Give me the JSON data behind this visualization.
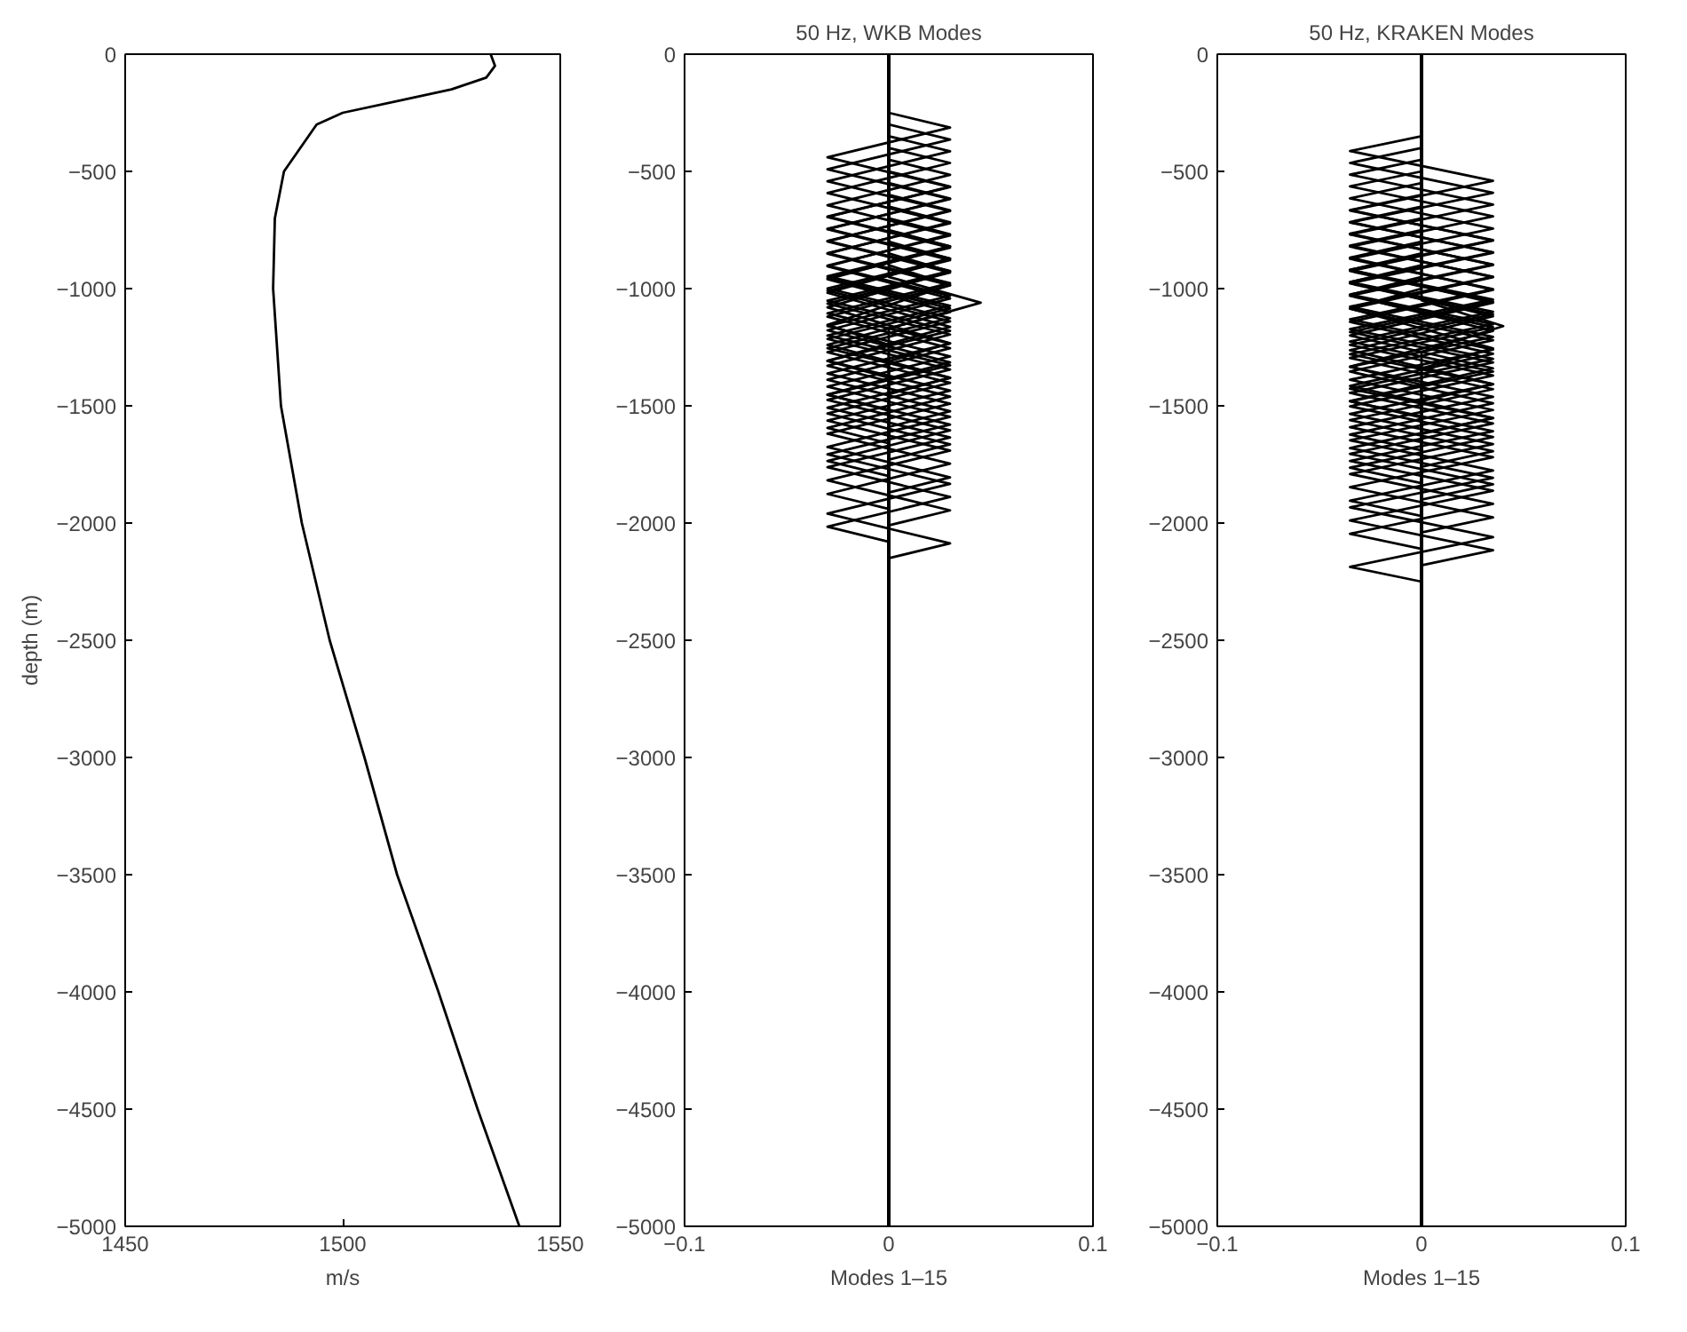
{
  "chart_data": [
    {
      "type": "line",
      "xlabel": "m/s",
      "ylabel": "depth (m)",
      "xlim": [
        1450,
        1550
      ],
      "ylim": [
        -5000,
        0
      ],
      "xticks": [
        1450,
        1500,
        1550
      ],
      "yticks": [
        -5000,
        -4500,
        -4000,
        -3500,
        -3000,
        -2500,
        -2000,
        -1500,
        -1000,
        -500,
        0
      ],
      "grid": false,
      "marker": "none",
      "line_style": "solid",
      "series": [
        {
          "color": "#000000",
          "x": [
            1534,
            1535,
            1533,
            1525,
            1512.5,
            1500,
            1494,
            1486.5,
            1484.4,
            1484,
            1485.8,
            1490.6,
            1497,
            1505,
            1512.5,
            1522,
            1531,
            1540.6
          ],
          "values": [
            0,
            -50,
            -100,
            -150,
            -200,
            -250,
            -300,
            -500,
            -700,
            -1000,
            -1500,
            -2000,
            -2500,
            -3000,
            -3500,
            -4000,
            -4500,
            -5000
          ]
        }
      ]
    },
    {
      "type": "line",
      "title": "50 Hz, WKB Modes",
      "xlabel": "Modes 1–15",
      "xlim": [
        -0.1,
        0.1
      ],
      "ylim": [
        -5000,
        0
      ],
      "xticks": [
        -0.1,
        0,
        0.1
      ],
      "yticks": [
        -5000,
        -4500,
        -4000,
        -3500,
        -3000,
        -2500,
        -2000,
        -1500,
        -1000,
        -500,
        0
      ],
      "grid": false,
      "marker": "none",
      "line_style": "solid",
      "series": [
        {
          "color": "#000000",
          "x": [
            0,
            0,
            0.045,
            0,
            0
          ],
          "values": [
            0,
            -950,
            -1060,
            -1170,
            -5000
          ]
        },
        {
          "color": "#000000",
          "x": [
            0,
            0,
            0.03,
            -0.03,
            0,
            0
          ],
          "values": [
            0,
            -900,
            -985,
            -1155,
            -1240,
            -5000
          ]
        },
        {
          "color": "#000000",
          "x": [
            0,
            0,
            0.03,
            -0.03,
            0.03,
            0,
            0
          ],
          "values": [
            0,
            -850,
            -927,
            -1080,
            -1233,
            -1310,
            -5000
          ]
        },
        {
          "color": "#000000",
          "x": [
            0,
            0,
            0.03,
            -0.03,
            0.03,
            -0.03,
            0,
            0
          ],
          "values": [
            0,
            -800,
            -873,
            -1018,
            -1163,
            -1308,
            -1380,
            -5000
          ]
        },
        {
          "color": "#000000",
          "x": [
            0,
            0,
            0.03,
            -0.03,
            0.03,
            -0.03,
            0.03,
            0,
            0
          ],
          "values": [
            0,
            -750,
            -820,
            -960,
            -1100,
            -1240,
            -1380,
            -1450,
            -5000
          ]
        },
        {
          "color": "#000000",
          "x": [
            0,
            0,
            0.03,
            -0.03,
            0.03,
            -0.03,
            0.03,
            -0.03,
            0,
            0
          ],
          "values": [
            0,
            -700,
            -768,
            -905,
            -1042,
            -1178,
            -1315,
            -1452,
            -1520,
            -5000
          ]
        },
        {
          "color": "#000000",
          "x": [
            0,
            0,
            0.03,
            -0.03,
            0.03,
            -0.03,
            0.03,
            -0.03,
            0.03,
            0,
            0
          ],
          "values": [
            0,
            -650,
            -717,
            -851,
            -986,
            -1120,
            -1254,
            -1389,
            -1523,
            -1590,
            -5000
          ]
        },
        {
          "color": "#000000",
          "x": [
            0,
            0,
            0.03,
            -0.03,
            0.03,
            -0.03,
            0.03,
            -0.03,
            0.03,
            -0.03,
            0,
            0
          ],
          "values": [
            0,
            -600,
            -666,
            -799,
            -931,
            -1064,
            -1196,
            -1329,
            -1461,
            -1594,
            -1660,
            -5000
          ]
        },
        {
          "color": "#000000",
          "x": [
            0,
            0,
            0.03,
            -0.03,
            0.03,
            -0.03,
            0.03,
            -0.03,
            0.03,
            -0.03,
            0.03,
            0,
            0
          ],
          "values": [
            0,
            -550,
            -616,
            -747,
            -878,
            -1009,
            -1140,
            -1271,
            -1402,
            -1533,
            -1664,
            -1730,
            -5000
          ]
        },
        {
          "color": "#000000",
          "x": [
            0,
            0,
            0.03,
            -0.03,
            0.03,
            -0.03,
            0.03,
            -0.03,
            0.03,
            -0.03,
            0.03,
            -0.03,
            0,
            0
          ],
          "values": [
            0,
            -500,
            -565,
            -695,
            -825,
            -955,
            -1085,
            -1215,
            -1345,
            -1475,
            -1605,
            -1735,
            -1800,
            -5000
          ]
        },
        {
          "color": "#000000",
          "x": [
            0,
            0,
            0.03,
            -0.03,
            0.03,
            -0.03,
            0.03,
            -0.03,
            0.03,
            -0.03,
            0.03,
            -0.03,
            0.03,
            0,
            0
          ],
          "values": [
            0,
            -450,
            -515,
            -644,
            -773,
            -902,
            -1031,
            -1160,
            -1289,
            -1418,
            -1547,
            -1676,
            -1805,
            -1870,
            -5000
          ]
        },
        {
          "color": "#000000",
          "x": [
            0,
            0,
            0.03,
            -0.03,
            0.03,
            -0.03,
            0.03,
            -0.03,
            0.03,
            -0.03,
            0.03,
            -0.03,
            0.03,
            -0.03,
            0,
            0
          ],
          "values": [
            0,
            -400,
            -464,
            -592,
            -721,
            -849,
            -977,
            -1106,
            -1234,
            -1362,
            -1491,
            -1619,
            -1747,
            -1876,
            -1940,
            -5000
          ]
        },
        {
          "color": "#000000",
          "x": [
            0,
            0,
            0.03,
            -0.03,
            0.03,
            -0.03,
            0.03,
            -0.03,
            0.03,
            -0.03,
            0.03,
            -0.03,
            0.03,
            -0.03,
            0.03,
            0,
            0
          ],
          "values": [
            0,
            -350,
            -414,
            -542,
            -669,
            -797,
            -925,
            -1052,
            -1180,
            -1308,
            -1435,
            -1563,
            -1691,
            -1818,
            -1946,
            -2010,
            -5000
          ]
        },
        {
          "color": "#000000",
          "x": [
            0,
            0,
            0.03,
            -0.03,
            0.03,
            -0.03,
            0.03,
            -0.03,
            0.03,
            -0.03,
            0.03,
            -0.03,
            0.03,
            -0.03,
            0.03,
            -0.03,
            0,
            0
          ],
          "values": [
            0,
            -300,
            -364,
            -491,
            -618,
            -745,
            -872,
            -999,
            -1126,
            -1254,
            -1381,
            -1508,
            -1635,
            -1762,
            -1889,
            -2016,
            -2080,
            -5000
          ]
        },
        {
          "color": "#000000",
          "x": [
            0,
            0,
            0.03,
            -0.03,
            0.03,
            -0.03,
            0.03,
            -0.03,
            0.03,
            -0.03,
            0.03,
            -0.03,
            0.03,
            -0.03,
            0.03,
            -0.03,
            0.03,
            0,
            0
          ],
          "values": [
            0,
            -250,
            -313,
            -440,
            -567,
            -693,
            -820,
            -947,
            -1073,
            -1200,
            -1327,
            -1453,
            -1580,
            -1707,
            -1833,
            -1960,
            -2087,
            -2150,
            -5000
          ]
        }
      ]
    },
    {
      "type": "line",
      "title": "50 Hz, KRAKEN Modes",
      "xlabel": "Modes 1–15",
      "xlim": [
        -0.1,
        0.1
      ],
      "ylim": [
        -5000,
        0
      ],
      "xticks": [
        -0.1,
        0,
        0.1
      ],
      "yticks": [
        -5000,
        -4500,
        -4000,
        -3500,
        -3000,
        -2500,
        -2000,
        -1500,
        -1000,
        -500,
        0
      ],
      "grid": false,
      "marker": "none",
      "line_style": "solid",
      "series": [
        {
          "color": "#000000",
          "x": [
            0,
            0,
            0.04,
            0,
            0
          ],
          "values": [
            0,
            -1050,
            -1160,
            -1270,
            -5000
          ]
        },
        {
          "color": "#000000",
          "x": [
            0,
            0,
            -0.035,
            0.035,
            0,
            0
          ],
          "values": [
            0,
            -1000,
            -1085,
            -1255,
            -1340,
            -5000
          ]
        },
        {
          "color": "#000000",
          "x": [
            0,
            0,
            -0.035,
            0.035,
            -0.035,
            0,
            0
          ],
          "values": [
            0,
            -950,
            -1027,
            -1180,
            -1333,
            -1410,
            -5000
          ]
        },
        {
          "color": "#000000",
          "x": [
            0,
            0,
            -0.035,
            0.035,
            -0.035,
            0.035,
            0,
            0
          ],
          "values": [
            0,
            -900,
            -973,
            -1118,
            -1263,
            -1408,
            -1480,
            -5000
          ]
        },
        {
          "color": "#000000",
          "x": [
            0,
            0,
            -0.035,
            0.035,
            -0.035,
            0.035,
            -0.035,
            0,
            0
          ],
          "values": [
            0,
            -850,
            -920,
            -1060,
            -1200,
            -1340,
            -1480,
            -1550,
            -5000
          ]
        },
        {
          "color": "#000000",
          "x": [
            0,
            0,
            -0.035,
            0.035,
            -0.035,
            0.035,
            -0.035,
            0.035,
            0,
            0
          ],
          "values": [
            0,
            -800,
            -868,
            -1005,
            -1142,
            -1278,
            -1415,
            -1552,
            -1620,
            -5000
          ]
        },
        {
          "color": "#000000",
          "x": [
            0,
            0,
            -0.035,
            0.035,
            -0.035,
            0.035,
            -0.035,
            0.035,
            -0.035,
            0,
            0
          ],
          "values": [
            0,
            -750,
            -817,
            -951,
            -1086,
            -1220,
            -1354,
            -1489,
            -1623,
            -1690,
            -5000
          ]
        },
        {
          "color": "#000000",
          "x": [
            0,
            0,
            -0.035,
            0.035,
            -0.035,
            0.035,
            -0.035,
            0.035,
            -0.035,
            0.035,
            0,
            0
          ],
          "values": [
            0,
            -700,
            -766,
            -899,
            -1031,
            -1164,
            -1296,
            -1429,
            -1561,
            -1694,
            -1760,
            -5000
          ]
        },
        {
          "color": "#000000",
          "x": [
            0,
            0,
            -0.035,
            0.035,
            -0.035,
            0.035,
            -0.035,
            0.035,
            -0.035,
            0.035,
            -0.035,
            0,
            0
          ],
          "values": [
            0,
            -650,
            -716,
            -847,
            -978,
            -1109,
            -1240,
            -1371,
            -1502,
            -1633,
            -1764,
            -1830,
            -5000
          ]
        },
        {
          "color": "#000000",
          "x": [
            0,
            0,
            -0.035,
            0.035,
            -0.035,
            0.035,
            -0.035,
            0.035,
            -0.035,
            0.035,
            -0.035,
            0.035,
            0,
            0
          ],
          "values": [
            0,
            -600,
            -665,
            -795,
            -925,
            -1055,
            -1185,
            -1315,
            -1445,
            -1575,
            -1705,
            -1835,
            -1900,
            -5000
          ]
        },
        {
          "color": "#000000",
          "x": [
            0,
            0,
            -0.035,
            0.035,
            -0.035,
            0.035,
            -0.035,
            0.035,
            -0.035,
            0.035,
            -0.035,
            0.035,
            -0.035,
            0,
            0
          ],
          "values": [
            0,
            -550,
            -615,
            -744,
            -873,
            -1002,
            -1131,
            -1260,
            -1389,
            -1518,
            -1647,
            -1776,
            -1905,
            -1970,
            -5000
          ]
        },
        {
          "color": "#000000",
          "x": [
            0,
            0,
            -0.035,
            0.035,
            -0.035,
            0.035,
            -0.035,
            0.035,
            -0.035,
            0.035,
            -0.035,
            0.035,
            -0.035,
            0.035,
            0,
            0
          ],
          "values": [
            0,
            -500,
            -564,
            -692,
            -821,
            -949,
            -1077,
            -1206,
            -1334,
            -1462,
            -1591,
            -1719,
            -1847,
            -1976,
            -2040,
            -5000
          ]
        },
        {
          "color": "#000000",
          "x": [
            0,
            0,
            -0.035,
            0.035,
            -0.035,
            0.035,
            -0.035,
            0.035,
            -0.035,
            0.035,
            -0.035,
            0.035,
            -0.035,
            0.035,
            -0.035,
            0,
            0
          ],
          "values": [
            0,
            -450,
            -514,
            -642,
            -769,
            -897,
            -1025,
            -1152,
            -1280,
            -1408,
            -1535,
            -1663,
            -1791,
            -1918,
            -2046,
            -2110,
            -5000
          ]
        },
        {
          "color": "#000000",
          "x": [
            0,
            0,
            -0.035,
            0.035,
            -0.035,
            0.035,
            -0.035,
            0.035,
            -0.035,
            0.035,
            -0.035,
            0.035,
            -0.035,
            0.035,
            -0.035,
            0.035,
            0,
            0
          ],
          "values": [
            0,
            -400,
            -464,
            -591,
            -718,
            -845,
            -972,
            -1099,
            -1226,
            -1354,
            -1481,
            -1608,
            -1735,
            -1862,
            -1989,
            -2116,
            -2180,
            -5000
          ]
        },
        {
          "color": "#000000",
          "x": [
            0,
            0,
            -0.035,
            0.035,
            -0.035,
            0.035,
            -0.035,
            0.035,
            -0.035,
            0.035,
            -0.035,
            0.035,
            -0.035,
            0.035,
            -0.035,
            0.035,
            -0.035,
            0,
            0
          ],
          "values": [
            0,
            -350,
            -413,
            -540,
            -667,
            -793,
            -920,
            -1047,
            -1173,
            -1300,
            -1427,
            -1553,
            -1680,
            -1807,
            -1933,
            -2060,
            -2187,
            -2250,
            -5000
          ]
        }
      ]
    }
  ]
}
